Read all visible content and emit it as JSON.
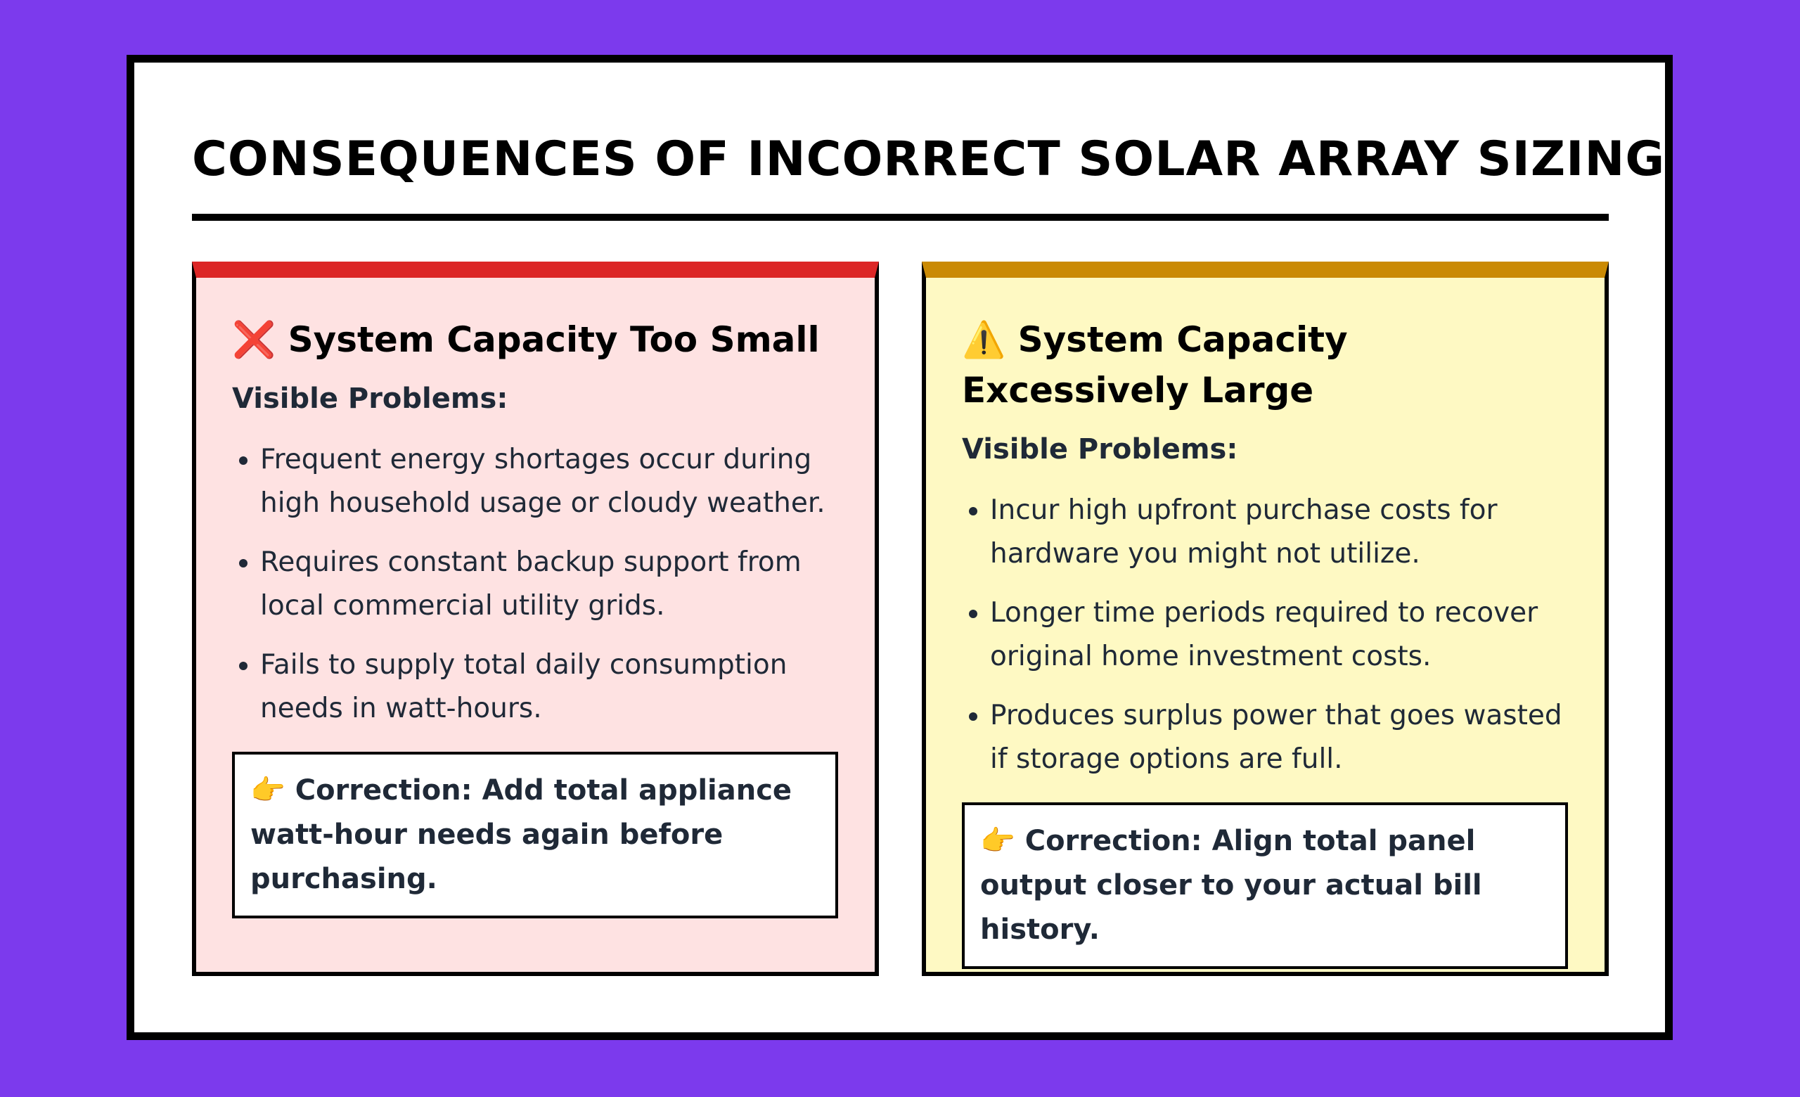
{
  "title": "CONSEQUENCES OF INCORRECT SOLAR ARRAY SIZING",
  "cards": [
    {
      "heading": "❌ System Capacity Too Small",
      "subheading": "Visible Problems:",
      "items": [
        "Frequent energy shortages occur during high household usage or cloudy weather.",
        "Requires constant backup support from local commercial utility grids.",
        "Fails to supply total daily consumption needs in watt-hours."
      ],
      "correction": "👉 Correction: Add total appliance watt-hour needs again before purchasing."
    },
    {
      "heading": "⚠️ System Capacity Excessively Large",
      "subheading": "Visible Problems:",
      "items": [
        "Incur high upfront purchase costs for hardware you might not utilize.",
        "Longer time periods required to recover original home investment costs.",
        "Produces surplus power that goes wasted if storage options are full."
      ],
      "correction": "👉 Correction: Align total panel output closer to your actual bill history."
    }
  ]
}
